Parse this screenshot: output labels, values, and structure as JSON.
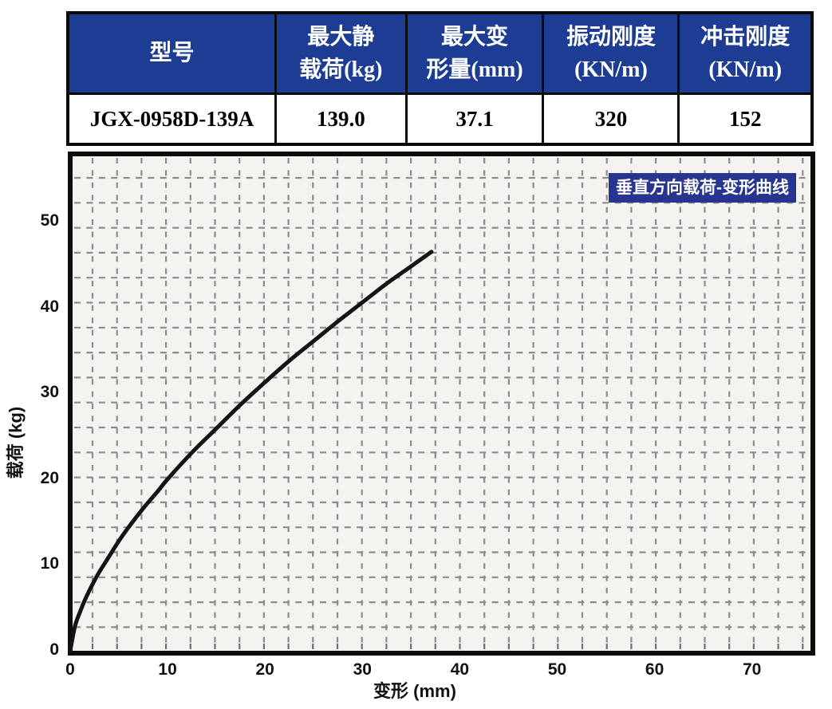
{
  "table": {
    "columns": [
      "型号",
      "最大静\n载荷(kg)",
      "最大变\n形量(mm)",
      "振动刚度\n(KN/m)",
      "冲击刚度\n(KN/m)"
    ],
    "row": [
      "JGX-0958D-139A",
      "139.0",
      "37.1",
      "320",
      "152"
    ]
  },
  "chart_data": {
    "type": "line",
    "legend": "垂直方向载荷-变形曲线",
    "xlabel": "变形 (mm)",
    "ylabel": "载荷 (kg)",
    "x_ticks": [
      0,
      10,
      20,
      30,
      40,
      50,
      60,
      70
    ],
    "y_ticks": [
      0,
      10,
      20,
      30,
      40,
      50
    ],
    "xlim": [
      0,
      76
    ],
    "ylim": [
      0,
      57.5
    ],
    "grid": "dashed",
    "series": [
      {
        "name": "垂直方向载荷-变形曲线",
        "x": [
          0,
          0.5,
          1,
          1.5,
          2,
          2.5,
          3,
          4,
          5,
          6,
          7.5,
          9,
          10,
          12.5,
          15,
          17.5,
          20,
          22.5,
          25,
          27.5,
          30,
          32.5,
          35,
          37.1
        ],
        "y": [
          0,
          2.9,
          4.5,
          5.9,
          7.1,
          8.2,
          9.2,
          11.0,
          12.8,
          14.4,
          16.6,
          18.6,
          20.0,
          23.1,
          25.9,
          28.7,
          31.3,
          33.8,
          36.1,
          38.4,
          40.6,
          42.8,
          44.8,
          46.5
        ]
      }
    ]
  },
  "colors": {
    "table_header_bg": "#1d3d94",
    "legend_bg": "#283590",
    "plot_bg": "#f4f3f0",
    "frame": "#0d0d0d",
    "grid": "#8c8c8c",
    "curve": "#141414",
    "header_text": "#ffffff"
  }
}
